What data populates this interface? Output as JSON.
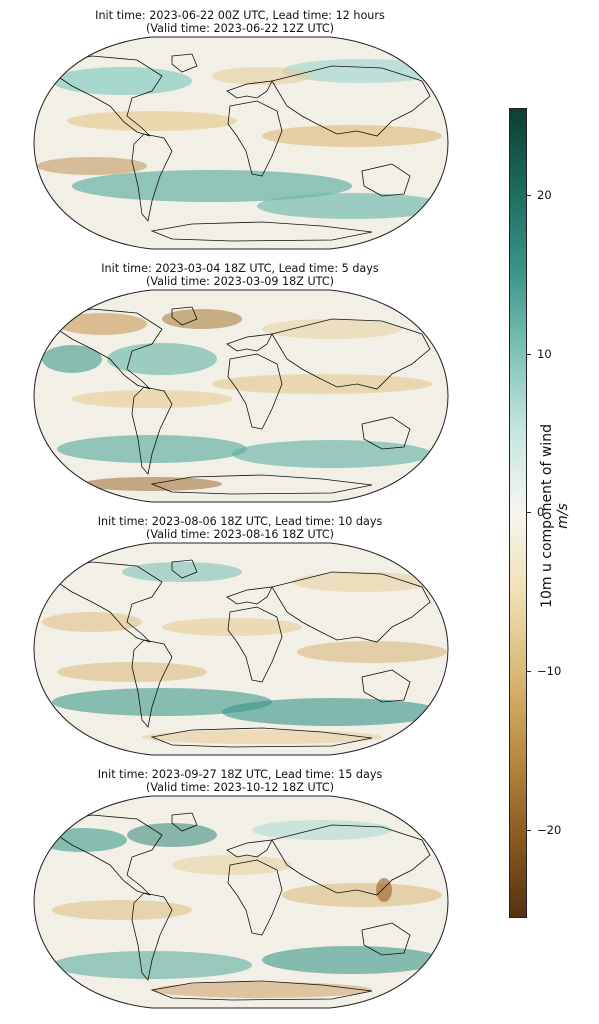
{
  "panels": [
    {
      "line1": "Init time: 2023-06-22 00Z UTC, Lead time: 12 hours",
      "line2": "(Valid time: 2023-06-22 12Z UTC)"
    },
    {
      "line1": "Init time: 2023-03-04 18Z UTC, Lead time: 5 days",
      "line2": "(Valid time: 2023-03-09 18Z UTC)"
    },
    {
      "line1": "Init time: 2023-08-06 18Z UTC, Lead time: 10 days",
      "line2": "(Valid time: 2023-08-16 18Z UTC)"
    },
    {
      "line1": "Init time: 2023-09-27 18Z UTC, Lead time: 15 days",
      "line2": "(Valid time: 2023-10-12 18Z UTC)"
    }
  ],
  "colorbar": {
    "label": "10m u component of wind",
    "units": "m/s",
    "range": [
      -25,
      25
    ],
    "ticks": [
      "20",
      "10",
      "0",
      "−10",
      "−20"
    ],
    "colors": {
      "positive": "#1d6b5e",
      "zero": "#f6f5f0",
      "negative": "#8c5a22"
    }
  }
}
